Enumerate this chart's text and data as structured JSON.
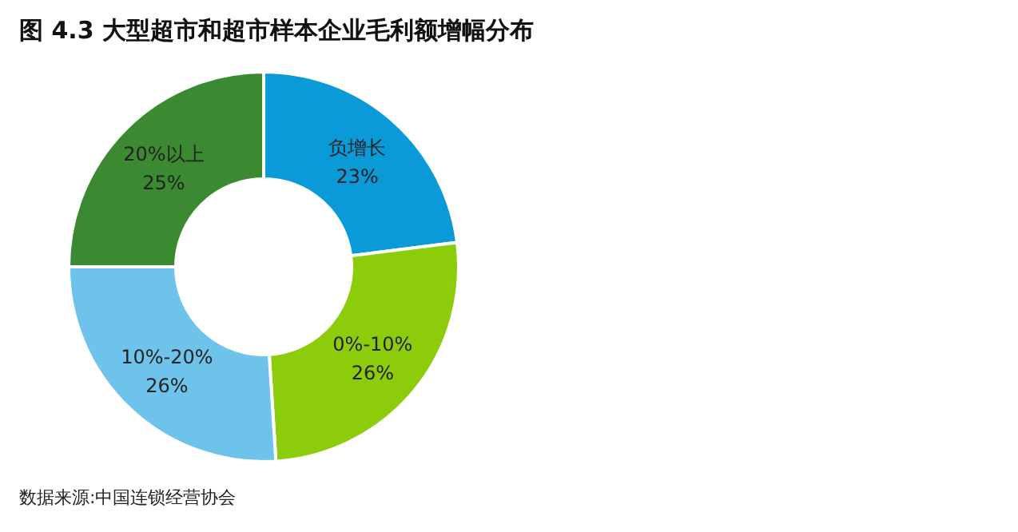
{
  "chart_data": {
    "type": "donut",
    "title": "图 4.3 大型超市和超市样本企业毛利额增幅分布",
    "categories": [
      "负增长",
      "0%-10%",
      "10%-20%",
      "20%以上"
    ],
    "values": [
      23,
      26,
      26,
      25
    ],
    "value_labels": [
      "23%",
      "26%",
      "26%",
      "25%"
    ],
    "colors": [
      "#0a9ad8",
      "#8ccc0a",
      "#6ec3ea",
      "#3b8a32"
    ],
    "legend": false,
    "annotations": [
      "数据来源:中国连锁经营协会"
    ]
  }
}
